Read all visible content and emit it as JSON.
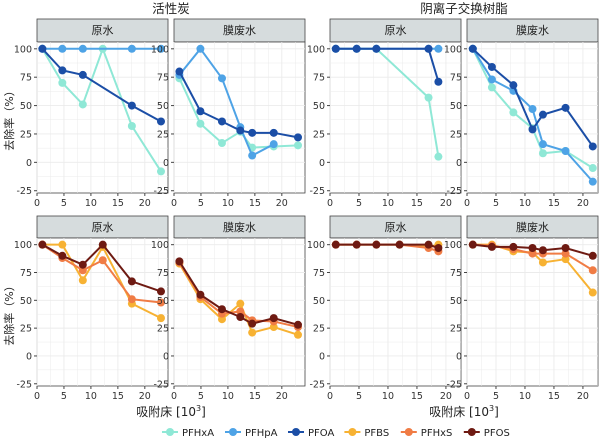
{
  "chart_data": [
    {
      "type": "line",
      "group": "活性炭",
      "panel": "原水",
      "xlim": [
        0,
        24.3
      ],
      "ylim": [
        -27,
        106
      ],
      "series": [
        {
          "name": "PFHxA",
          "x": [
            1,
            4.7,
            8.5,
            12.2,
            17.6,
            23
          ],
          "y": [
            100,
            70,
            51,
            100,
            32,
            -8
          ]
        },
        {
          "name": "PFHpA",
          "x": [
            1,
            4.7,
            8.5,
            17.6,
            23
          ],
          "y": [
            100,
            100,
            100,
            100,
            100
          ]
        },
        {
          "name": "PFOA",
          "x": [
            1,
            4.7,
            8.5,
            17.6,
            23
          ],
          "y": [
            100,
            81,
            77,
            50,
            36
          ]
        }
      ]
    },
    {
      "type": "line",
      "group": "活性炭",
      "panel": "膜废水",
      "xlim": [
        0,
        24.3
      ],
      "ylim": [
        -27,
        106
      ],
      "series": [
        {
          "name": "PFHxA",
          "x": [
            1,
            4.9,
            8.9,
            12.3,
            14.5,
            18.5,
            23
          ],
          "y": [
            74,
            34,
            17,
            27,
            13,
            14,
            15
          ]
        },
        {
          "name": "PFHpA",
          "x": [
            1,
            4.9,
            8.9,
            12.3,
            14.5,
            18.5
          ],
          "y": [
            77,
            100,
            74,
            31,
            6,
            16
          ]
        },
        {
          "name": "PFOA",
          "x": [
            1,
            4.9,
            8.9,
            12.3,
            14.5,
            18.5,
            23
          ],
          "y": [
            80,
            45,
            36,
            28,
            26,
            26,
            22
          ]
        }
      ]
    },
    {
      "type": "line",
      "group": "阴离子交换树脂",
      "panel": "原水",
      "xlim": [
        0,
        22.6
      ],
      "ylim": [
        -27,
        106
      ],
      "series": [
        {
          "name": "PFHxA",
          "x": [
            1,
            4.6,
            8,
            17,
            18.7
          ],
          "y": [
            100,
            100,
            100,
            57,
            5
          ]
        },
        {
          "name": "PFHpA",
          "x": [
            1,
            4.6,
            8,
            17,
            18.7
          ],
          "y": [
            100,
            100,
            100,
            100,
            100
          ]
        },
        {
          "name": "PFOA",
          "x": [
            1,
            4.6,
            8,
            17,
            18.7
          ],
          "y": [
            100,
            100,
            100,
            100,
            71
          ]
        }
      ]
    },
    {
      "type": "line",
      "group": "阴离子交换树脂",
      "panel": "膜废水",
      "xlim": [
        0,
        22.6
      ],
      "ylim": [
        -27,
        106
      ],
      "series": [
        {
          "name": "PFHxA",
          "x": [
            1,
            4.3,
            8,
            11.3,
            13.1,
            17,
            21.7
          ],
          "y": [
            100,
            66,
            44,
            30,
            8,
            10,
            -5
          ]
        },
        {
          "name": "PFHpA",
          "x": [
            1,
            4.3,
            8,
            11.3,
            13.1,
            17,
            21.7
          ],
          "y": [
            100,
            73,
            63,
            47,
            16,
            10,
            -17
          ]
        },
        {
          "name": "PFOA",
          "x": [
            1,
            4.3,
            8,
            11.3,
            13.1,
            17,
            21.7
          ],
          "y": [
            100,
            84,
            68,
            29,
            42,
            48,
            14
          ]
        }
      ]
    },
    {
      "type": "line",
      "group": "活性炭",
      "panel": "原水",
      "xlim": [
        0,
        24.3
      ],
      "ylim": [
        -27,
        106
      ],
      "series": [
        {
          "name": "PFBS",
          "x": [
            1,
            4.7,
            8.5,
            12.2,
            17.6,
            23
          ],
          "y": [
            100,
            100,
            68,
            98,
            47,
            34
          ]
        },
        {
          "name": "PFHxS",
          "x": [
            1,
            4.7,
            8.5,
            12.2,
            17.6,
            23
          ],
          "y": [
            100,
            88,
            77,
            86,
            51,
            48
          ]
        },
        {
          "name": "PFOS",
          "x": [
            1,
            4.7,
            8.5,
            12.2,
            17.6,
            23
          ],
          "y": [
            100,
            90,
            82,
            100,
            67,
            58
          ]
        }
      ]
    },
    {
      "type": "line",
      "group": "活性炭",
      "panel": "膜废水",
      "xlim": [
        0,
        24.3
      ],
      "ylim": [
        -27,
        106
      ],
      "series": [
        {
          "name": "PFBS",
          "x": [
            1,
            4.9,
            8.9,
            12.3,
            14.5,
            18.5,
            23
          ],
          "y": [
            83,
            51,
            33,
            47,
            21,
            26,
            19
          ]
        },
        {
          "name": "PFHxS",
          "x": [
            1,
            4.9,
            8.9,
            12.3,
            14.5,
            18.5,
            23
          ],
          "y": [
            84,
            53,
            38,
            40,
            32,
            31,
            26
          ]
        },
        {
          "name": "PFOS",
          "x": [
            1,
            4.9,
            8.9,
            12.3,
            14.5,
            18.5,
            23
          ],
          "y": [
            85,
            55,
            42,
            35,
            29,
            34,
            28
          ]
        }
      ]
    },
    {
      "type": "line",
      "group": "阴离子交换树脂",
      "panel": "原水",
      "xlim": [
        0,
        22.6
      ],
      "ylim": [
        -27,
        106
      ],
      "series": [
        {
          "name": "PFBS",
          "x": [
            1,
            4.6,
            8,
            12,
            17,
            18.7
          ],
          "y": [
            100,
            100,
            100,
            100,
            98,
            100
          ]
        },
        {
          "name": "PFHxS",
          "x": [
            1,
            4.6,
            8,
            12,
            17,
            18.7
          ],
          "y": [
            100,
            100,
            100,
            100,
            97,
            94
          ]
        },
        {
          "name": "PFOS",
          "x": [
            1,
            4.6,
            8,
            12,
            17,
            18.7
          ],
          "y": [
            100,
            100,
            100,
            100,
            100,
            97
          ]
        }
      ]
    },
    {
      "type": "line",
      "group": "阴离子交换树脂",
      "panel": "膜废水",
      "xlim": [
        0,
        22.6
      ],
      "ylim": [
        -27,
        106
      ],
      "series": [
        {
          "name": "PFBS",
          "x": [
            1,
            4.3,
            8,
            11.3,
            13.1,
            17,
            21.7
          ],
          "y": [
            100,
            100,
            94,
            93,
            84,
            87,
            57
          ]
        },
        {
          "name": "PFHxS",
          "x": [
            1,
            4.3,
            8,
            11.3,
            13.1,
            17,
            21.7
          ],
          "y": [
            100,
            99,
            96,
            92,
            92,
            92,
            77
          ]
        },
        {
          "name": "PFOS",
          "x": [
            1,
            4.3,
            8,
            11.3,
            13.1,
            17,
            21.7
          ],
          "y": [
            100,
            98,
            98,
            97,
            95,
            97,
            90
          ]
        }
      ]
    }
  ],
  "titles": {
    "ac": "活性炭",
    "aix": "阴离子交换树脂"
  },
  "ylabel": "去除率（%）",
  "xlabel": "吸附床 [10",
  "xlabel_sup": "3",
  "xlabel_end": "]",
  "yticks": [
    "100",
    "75",
    "50",
    "25",
    "0",
    "-25"
  ],
  "xticks": [
    "0",
    "5",
    "10",
    "15",
    "20"
  ],
  "legend": [
    "PFHxA",
    "PFHpA",
    "PFOA",
    "PFBS",
    "PFHxS",
    "PFOS"
  ],
  "colors": {
    "PFHxA": "#8fe8d6",
    "PFHpA": "#4ea3e6",
    "PFOA": "#1b4ea6",
    "PFBS": "#f7b233",
    "PFHxS": "#f07c45",
    "PFOS": "#6e1a12"
  }
}
